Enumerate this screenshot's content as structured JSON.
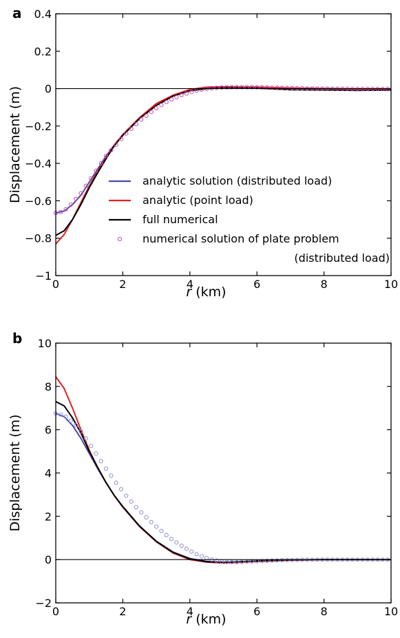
{
  "chart_data": [
    {
      "type": "line",
      "panel_label": "a",
      "xlabel_var": "r",
      "xlabel_unit": " (km)",
      "ylabel": "Displacement (m)",
      "xlim": [
        0,
        10
      ],
      "ylim": [
        -1,
        0.4
      ],
      "xticks": [
        "0",
        "2",
        "4",
        "6",
        "8",
        "10"
      ],
      "yticks": [
        "−1",
        "−0.8",
        "−0.6",
        "−0.4",
        "−0.2",
        "0",
        "0.2",
        "0.4"
      ],
      "grid": false,
      "legend_position": "center-right",
      "series": [
        {
          "name": "analytic solution (distributed load)",
          "color": "#4a4aa8",
          "x": [
            0,
            0.25,
            0.5,
            0.75,
            1.0,
            1.25,
            1.5,
            1.75,
            2.0,
            2.5,
            3.0,
            3.5,
            4.0,
            4.5,
            5.0,
            6.0,
            7.0,
            8.0,
            9.0,
            10.0
          ],
          "y": [
            -0.665,
            -0.655,
            -0.62,
            -0.57,
            -0.5,
            -0.43,
            -0.36,
            -0.3,
            -0.25,
            -0.16,
            -0.09,
            -0.04,
            -0.01,
            0.003,
            0.008,
            0.008,
            0.003,
            0.0,
            -0.002,
            -0.002
          ]
        },
        {
          "name": "analytic (point load)",
          "color": "#e02020",
          "x": [
            0,
            0.25,
            0.5,
            0.75,
            1.0,
            1.25,
            1.5,
            1.75,
            2.0,
            2.5,
            3.0,
            3.5,
            4.0,
            4.5,
            5.0,
            6.0,
            7.0,
            8.0,
            9.0,
            10.0
          ],
          "y": [
            -0.83,
            -0.78,
            -0.7,
            -0.61,
            -0.52,
            -0.44,
            -0.37,
            -0.3,
            -0.245,
            -0.155,
            -0.08,
            -0.035,
            -0.005,
            0.008,
            0.01,
            0.008,
            0.003,
            0.0,
            -0.003,
            -0.003
          ]
        },
        {
          "name": "full numerical",
          "color": "#000000",
          "x": [
            0,
            0.25,
            0.5,
            0.75,
            1.0,
            1.25,
            1.5,
            1.75,
            2.0,
            2.5,
            3.0,
            3.5,
            4.0,
            4.5,
            5.0,
            6.0,
            7.0,
            8.0,
            9.0,
            10.0
          ],
          "y": [
            -0.785,
            -0.76,
            -0.7,
            -0.62,
            -0.53,
            -0.45,
            -0.375,
            -0.305,
            -0.25,
            -0.16,
            -0.09,
            -0.04,
            -0.012,
            0.0,
            0.005,
            0.002,
            -0.006,
            -0.008,
            -0.01,
            -0.008
          ]
        },
        {
          "name": "numerical solution of plate problem (distributed load)",
          "color": "#c050b0",
          "markers": "circle",
          "x": [
            0,
            0.15,
            0.3,
            0.45,
            0.6,
            0.75,
            0.9,
            1.05,
            1.2,
            1.35,
            1.5,
            1.65,
            1.8,
            1.95,
            2.1,
            2.25,
            2.4,
            2.55,
            2.7,
            2.85,
            3.0,
            3.15,
            3.3,
            3.45,
            3.6,
            3.75,
            3.9,
            4.05,
            4.2,
            4.35,
            4.5,
            4.65,
            4.8,
            4.95,
            5.1,
            5.25,
            5.4,
            5.55,
            5.7,
            5.85,
            6.0,
            6.15,
            6.3,
            6.45,
            6.6,
            6.75,
            6.9,
            7.05,
            7.2,
            7.35,
            7.5,
            7.65,
            7.8,
            7.95,
            8.1,
            8.25,
            8.4,
            8.55,
            8.7,
            8.85,
            9.0,
            9.15,
            9.3,
            9.45,
            9.6,
            9.75,
            9.9
          ],
          "y": [
            -0.665,
            -0.66,
            -0.645,
            -0.62,
            -0.59,
            -0.56,
            -0.52,
            -0.48,
            -0.44,
            -0.4,
            -0.36,
            -0.33,
            -0.3,
            -0.27,
            -0.24,
            -0.215,
            -0.19,
            -0.165,
            -0.145,
            -0.125,
            -0.105,
            -0.088,
            -0.072,
            -0.058,
            -0.046,
            -0.035,
            -0.026,
            -0.018,
            -0.011,
            -0.006,
            -0.002,
            0.002,
            0.004,
            0.006,
            0.007,
            0.008,
            0.008,
            0.008,
            0.008,
            0.008,
            0.007,
            0.007,
            0.006,
            0.005,
            0.005,
            0.004,
            0.003,
            0.003,
            0.002,
            0.002,
            0.001,
            0.001,
            0.0,
            0.0,
            0.0,
            -0.001,
            -0.001,
            -0.001,
            -0.001,
            -0.002,
            -0.002,
            -0.002,
            -0.002,
            -0.002,
            -0.002,
            -0.002,
            -0.002
          ]
        }
      ],
      "legend_entries": [
        "analytic solution (distributed load)",
        "analytic (point load)",
        "full numerical",
        "numerical solution of plate problem",
        "(distributed load)"
      ]
    },
    {
      "type": "line",
      "panel_label": "b",
      "xlabel_var": "r",
      "xlabel_unit": " (km)",
      "ylabel": "Displacement (m)",
      "xlim": [
        0,
        10
      ],
      "ylim": [
        -2,
        10
      ],
      "xticks": [
        "0",
        "2",
        "4",
        "6",
        "8",
        "10"
      ],
      "yticks": [
        "−2",
        "0",
        "2",
        "4",
        "6",
        "8",
        "10"
      ],
      "grid": false,
      "series": [
        {
          "color": "#4a4aa8",
          "x": [
            0,
            0.25,
            0.5,
            0.75,
            1.0,
            1.25,
            1.5,
            1.75,
            2.0,
            2.5,
            3.0,
            3.5,
            4.0,
            4.5,
            5.0,
            5.5,
            6.0,
            7.0,
            8.0,
            9.0,
            10.0
          ],
          "y": [
            6.75,
            6.6,
            6.2,
            5.6,
            4.9,
            4.2,
            3.55,
            2.95,
            2.45,
            1.55,
            0.85,
            0.35,
            0.05,
            -0.08,
            -0.12,
            -0.1,
            -0.07,
            -0.02,
            0.0,
            0.0,
            0.0
          ]
        },
        {
          "color": "#e02020",
          "x": [
            0,
            0.25,
            0.5,
            0.75,
            1.0,
            1.25,
            1.5,
            1.75,
            2.0,
            2.5,
            3.0,
            3.5,
            4.0,
            4.5,
            5.0,
            5.5,
            6.0,
            7.0,
            8.0,
            9.0,
            10.0
          ],
          "y": [
            8.45,
            7.9,
            7.0,
            6.0,
            5.05,
            4.25,
            3.55,
            2.95,
            2.42,
            1.52,
            0.82,
            0.3,
            0.0,
            -0.12,
            -0.16,
            -0.13,
            -0.09,
            -0.03,
            0.0,
            0.0,
            0.0
          ]
        },
        {
          "color": "#000000",
          "x": [
            0,
            0.25,
            0.5,
            0.75,
            1.0,
            1.25,
            1.5,
            1.75,
            2.0,
            2.5,
            3.0,
            3.5,
            4.0,
            4.5,
            5.0,
            5.5,
            6.0,
            7.0,
            8.0,
            9.0,
            10.0
          ],
          "y": [
            7.3,
            7.1,
            6.55,
            5.85,
            5.0,
            4.25,
            3.55,
            2.95,
            2.44,
            1.54,
            0.84,
            0.33,
            0.03,
            -0.1,
            -0.13,
            -0.1,
            -0.06,
            -0.02,
            0.0,
            0.0,
            0.0
          ]
        },
        {
          "color": "#9090d8",
          "markers": "circle",
          "x": [
            0,
            0.15,
            0.3,
            0.45,
            0.6,
            0.75,
            0.9,
            1.05,
            1.2,
            1.35,
            1.5,
            1.65,
            1.8,
            1.95,
            2.1,
            2.25,
            2.4,
            2.55,
            2.7,
            2.85,
            3.0,
            3.15,
            3.3,
            3.45,
            3.6,
            3.75,
            3.9,
            4.05,
            4.2,
            4.35,
            4.5,
            4.65,
            4.8,
            4.95,
            5.1,
            5.25,
            5.4,
            5.55,
            5.7,
            5.85,
            6.0,
            6.15,
            6.3,
            6.45,
            6.6,
            6.75,
            6.9,
            7.05,
            7.2,
            7.35,
            7.5,
            7.65,
            7.8,
            7.95,
            8.1,
            8.25,
            8.4,
            8.55,
            8.7,
            8.85,
            9.0,
            9.15,
            9.3,
            9.45,
            9.6,
            9.75,
            9.9
          ],
          "y": [
            6.75,
            6.7,
            6.6,
            6.42,
            6.2,
            5.92,
            5.6,
            5.25,
            4.9,
            4.55,
            4.2,
            3.88,
            3.55,
            3.25,
            2.95,
            2.68,
            2.42,
            2.18,
            1.95,
            1.73,
            1.52,
            1.32,
            1.13,
            0.95,
            0.79,
            0.64,
            0.5,
            0.37,
            0.25,
            0.15,
            0.07,
            0.0,
            -0.05,
            -0.09,
            -0.11,
            -0.12,
            -0.12,
            -0.11,
            -0.1,
            -0.09,
            -0.08,
            -0.07,
            -0.06,
            -0.05,
            -0.04,
            -0.03,
            -0.03,
            -0.02,
            -0.02,
            -0.01,
            -0.01,
            -0.01,
            0.0,
            0.0,
            0.0,
            0.0,
            0.0,
            0.0,
            0.0,
            0.0,
            0.0,
            0.0,
            0.0,
            0.0,
            0.0,
            0.0,
            0.0
          ]
        }
      ]
    }
  ]
}
